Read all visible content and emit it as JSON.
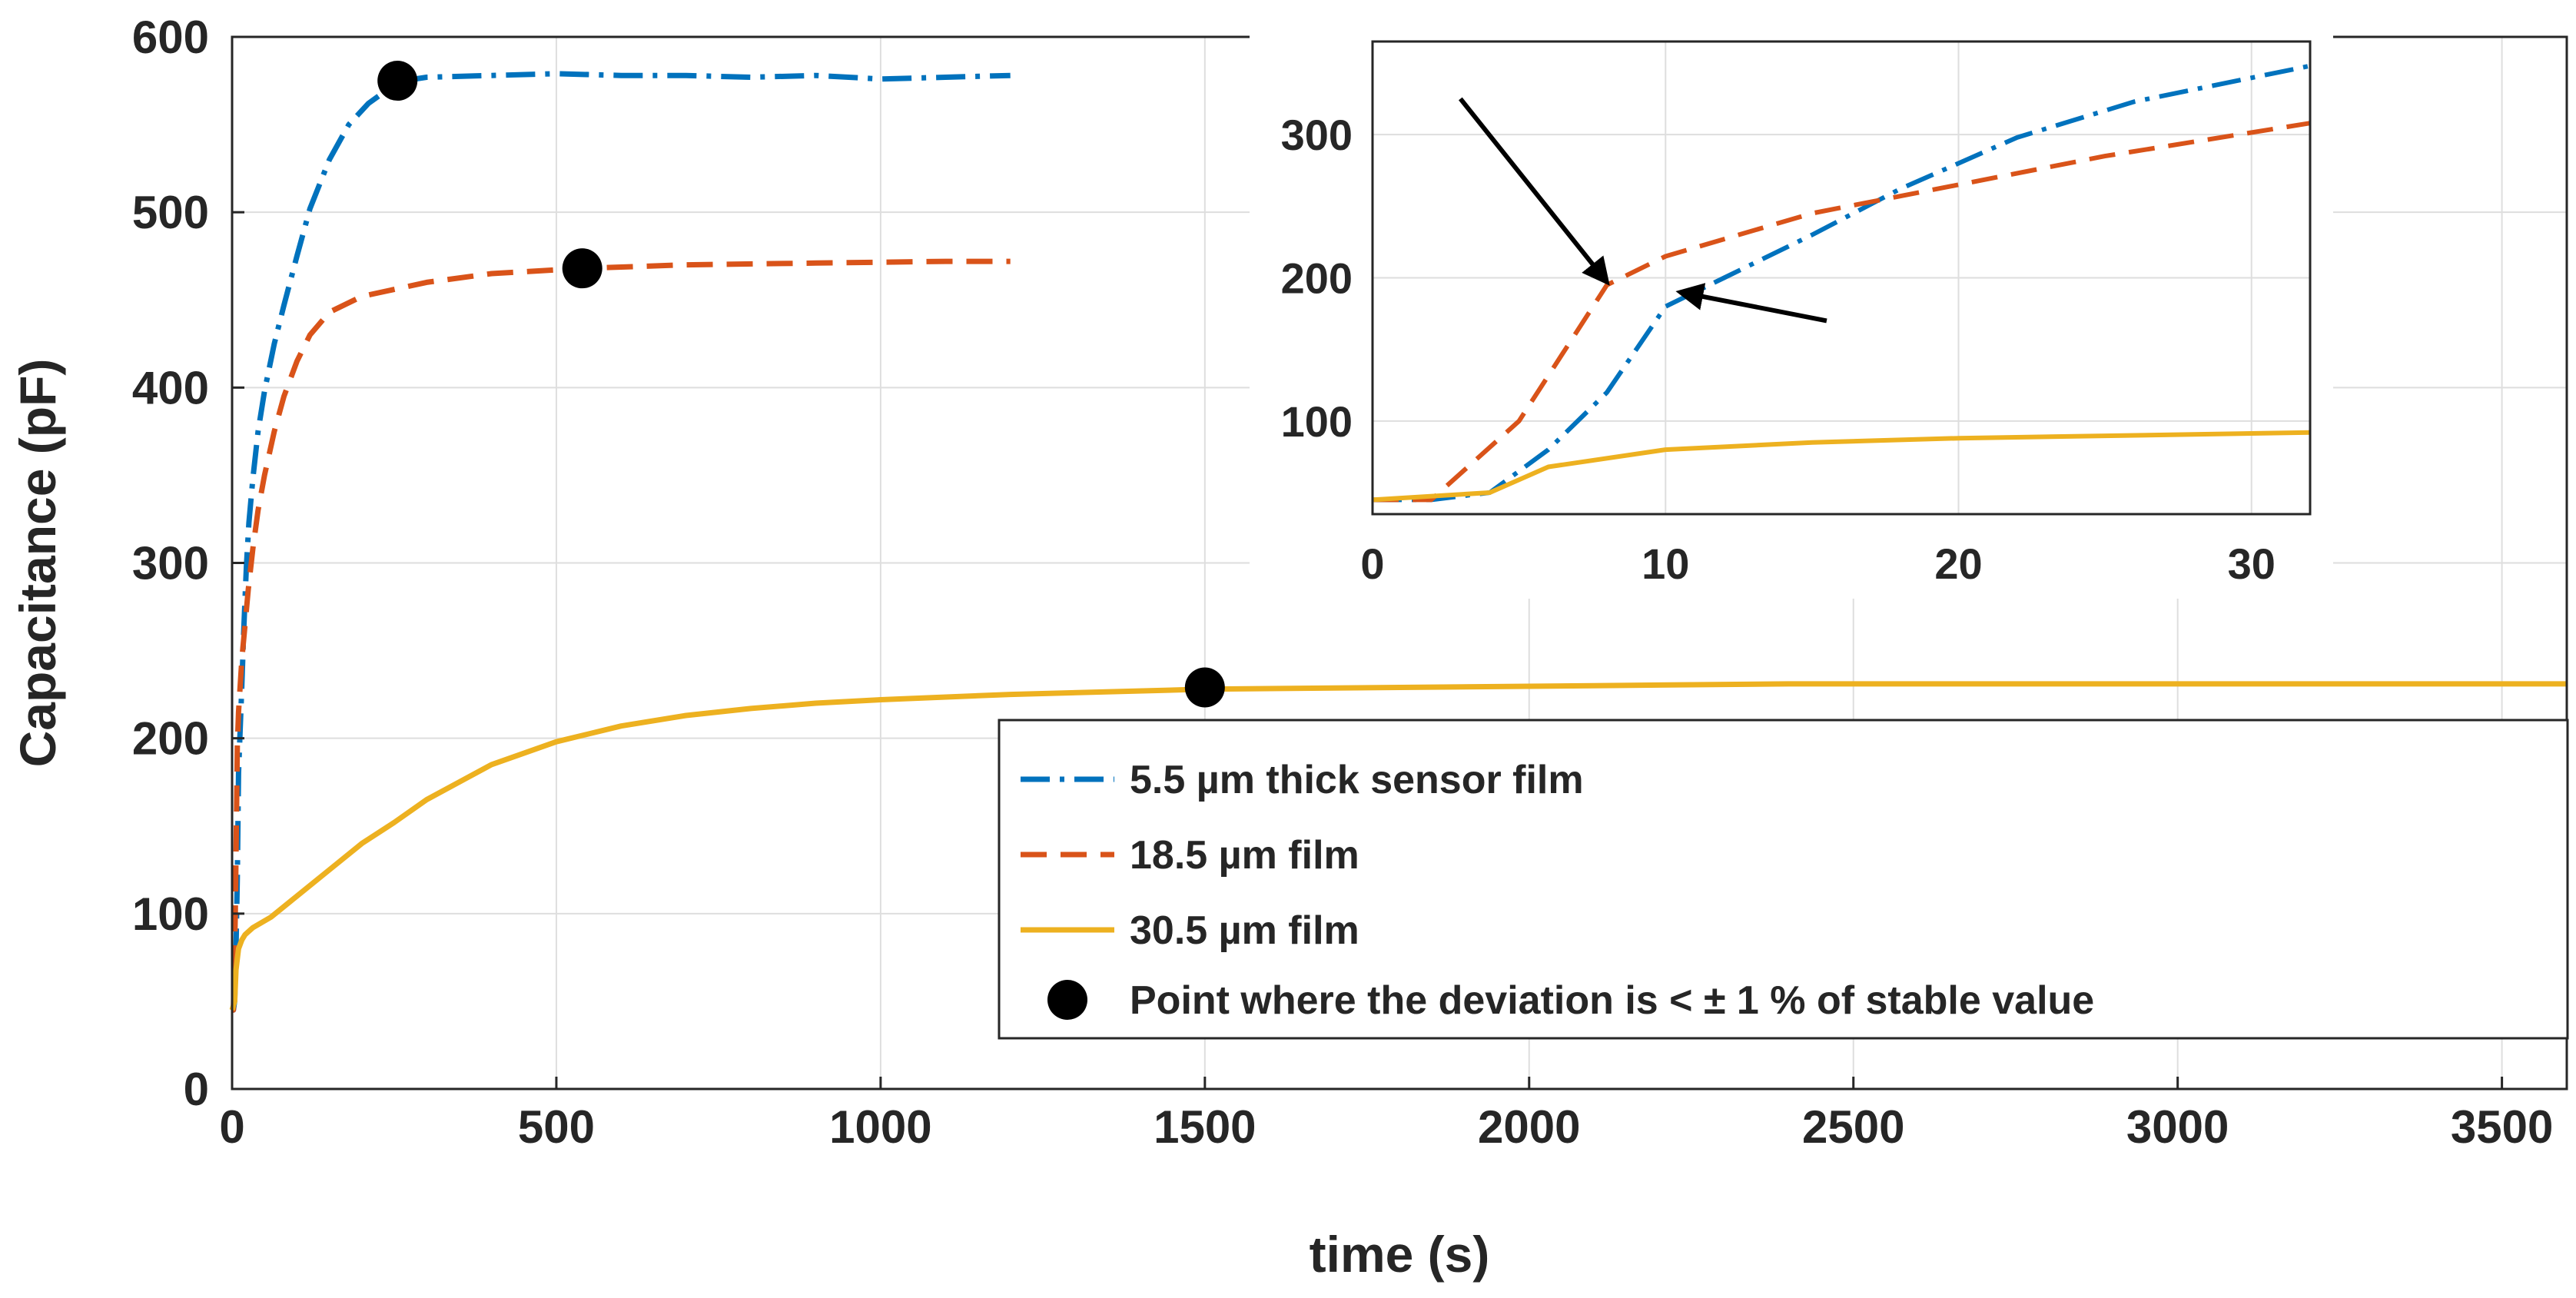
{
  "chart_data": {
    "type": "line",
    "xlabel": "time (s)",
    "ylabel": "Capacitance (pF)",
    "xlim": [
      0,
      3600
    ],
    "ylim": [
      0,
      600
    ],
    "xticks": [
      0,
      500,
      1000,
      1500,
      2000,
      2500,
      3000,
      3500
    ],
    "yticks": [
      0,
      100,
      200,
      300,
      400,
      500,
      600
    ],
    "grid": true,
    "legend_position": "bottom-right",
    "colors": {
      "blue": "#0072BD",
      "orange": "#D95319",
      "yellow": "#EDB120",
      "marker": "#000000"
    },
    "series": [
      {
        "name": "5.5 µm thick sensor film",
        "style": "dash-dot",
        "color": "#0072BD",
        "points": [
          [
            0,
            45
          ],
          [
            2,
            45
          ],
          [
            4,
            50
          ],
          [
            6,
            80
          ],
          [
            8,
            120
          ],
          [
            10,
            180
          ],
          [
            12,
            200
          ],
          [
            15,
            230
          ],
          [
            18,
            262
          ],
          [
            22,
            298
          ],
          [
            26,
            323
          ],
          [
            32,
            348
          ],
          [
            40,
            375
          ],
          [
            50,
            398
          ],
          [
            65,
            425
          ],
          [
            80,
            447
          ],
          [
            100,
            475
          ],
          [
            120,
            502
          ],
          [
            150,
            530
          ],
          [
            180,
            550
          ],
          [
            210,
            562
          ],
          [
            240,
            570
          ],
          [
            265,
            575
          ],
          [
            300,
            577
          ],
          [
            400,
            578
          ],
          [
            500,
            579
          ],
          [
            600,
            578
          ],
          [
            700,
            578
          ],
          [
            800,
            577
          ],
          [
            900,
            578
          ],
          [
            1000,
            576
          ],
          [
            1100,
            577
          ],
          [
            1200,
            578
          ]
        ]
      },
      {
        "name": "18.5 µm film",
        "style": "dashed",
        "color": "#D95319",
        "points": [
          [
            0,
            45
          ],
          [
            2,
            45
          ],
          [
            5,
            100
          ],
          [
            8,
            195
          ],
          [
            10,
            215
          ],
          [
            15,
            245
          ],
          [
            20,
            265
          ],
          [
            25,
            285
          ],
          [
            32,
            308
          ],
          [
            40,
            330
          ],
          [
            50,
            350
          ],
          [
            65,
            375
          ],
          [
            80,
            395
          ],
          [
            100,
            415
          ],
          [
            120,
            430
          ],
          [
            150,
            443
          ],
          [
            200,
            452
          ],
          [
            300,
            460
          ],
          [
            400,
            465
          ],
          [
            540,
            468
          ],
          [
            700,
            470
          ],
          [
            900,
            471
          ],
          [
            1100,
            472
          ],
          [
            1200,
            472
          ]
        ]
      },
      {
        "name": "30.5 µm film",
        "style": "solid",
        "color": "#EDB120",
        "points": [
          [
            0,
            45
          ],
          [
            4,
            50
          ],
          [
            6,
            68
          ],
          [
            10,
            80
          ],
          [
            15,
            85
          ],
          [
            20,
            88
          ],
          [
            32,
            92
          ],
          [
            60,
            98
          ],
          [
            100,
            110
          ],
          [
            150,
            125
          ],
          [
            200,
            140
          ],
          [
            250,
            152
          ],
          [
            300,
            165
          ],
          [
            400,
            185
          ],
          [
            500,
            198
          ],
          [
            600,
            207
          ],
          [
            700,
            213
          ],
          [
            800,
            217
          ],
          [
            900,
            220
          ],
          [
            1000,
            222
          ],
          [
            1200,
            225
          ],
          [
            1500,
            228
          ],
          [
            1800,
            229
          ],
          [
            2100,
            230
          ],
          [
            2400,
            231
          ],
          [
            2700,
            231
          ],
          [
            3000,
            231
          ],
          [
            3300,
            231
          ],
          [
            3600,
            231
          ]
        ]
      }
    ],
    "markers": {
      "name": "Point where the deviation is < ± 1 % of stable value",
      "points": [
        [
          255,
          575
        ],
        [
          540,
          468
        ],
        [
          1500,
          229
        ]
      ]
    },
    "inset": {
      "xlim": [
        0,
        32
      ],
      "ylim": [
        35,
        365
      ],
      "xticks": [
        0,
        10,
        20,
        30
      ],
      "yticks": [
        100,
        200,
        300
      ],
      "grid": true,
      "annotations": [
        {
          "type": "arrow",
          "from": [
            3,
            325
          ],
          "to": [
            8,
            197
          ]
        },
        {
          "type": "arrow",
          "from": [
            15.5,
            170
          ],
          "to": [
            10.5,
            190
          ]
        }
      ]
    }
  }
}
